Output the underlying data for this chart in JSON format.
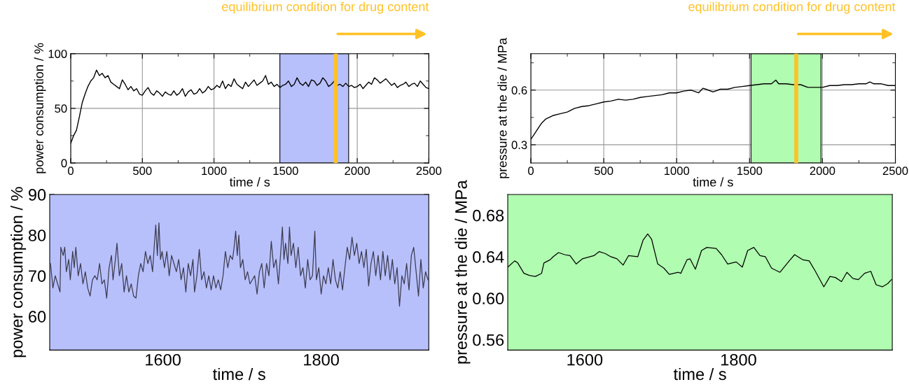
{
  "chart_data": [
    {
      "type": "line",
      "xlabel": "time / s",
      "ylabel": "power consumption / %",
      "xlim": [
        0,
        2500
      ],
      "ylim": [
        0,
        100
      ],
      "xticks": [
        0,
        {
          "value": 250,
          "label": null
        },
        500,
        {
          "value": 750,
          "label": null
        },
        1000,
        {
          "value": 1250,
          "label": null
        },
        1500,
        {
          "value": 1750,
          "label": null
        },
        2000,
        {
          "value": 2250,
          "label": null
        },
        2500
      ],
      "yticks": [
        0,
        {
          "value": 25,
          "label": null
        },
        50,
        {
          "value": 75,
          "label": null
        },
        100
      ],
      "grid": true,
      "bands": [
        {
          "axis": "x",
          "from": 1460,
          "to": 1940,
          "color": "#b8c0fc"
        }
      ],
      "ref_lines": [
        {
          "axis": "x",
          "value": 1850,
          "label": "equilibrium condition for drug content",
          "color": "#ffc125"
        }
      ],
      "series": [
        {
          "color": "#000000",
          "x": [
            0,
            20,
            40,
            60,
            80,
            100,
            120,
            140,
            160,
            180,
            200,
            220,
            240,
            260,
            280,
            300,
            320,
            340,
            360,
            380,
            400,
            420,
            440,
            460,
            480,
            500,
            520,
            540,
            560,
            580,
            600,
            620,
            640,
            660,
            680,
            700,
            720,
            740,
            760,
            780,
            800,
            820,
            840,
            860,
            880,
            900,
            920,
            940,
            960,
            980,
            1000,
            1020,
            1040,
            1060,
            1080,
            1100,
            1120,
            1140,
            1160,
            1180,
            1200,
            1220,
            1240,
            1260,
            1280,
            1300,
            1320,
            1340,
            1360,
            1380,
            1400,
            1420,
            1440,
            1460,
            1480,
            1500,
            1520,
            1540,
            1560,
            1580,
            1600,
            1620,
            1640,
            1660,
            1680,
            1700,
            1720,
            1740,
            1760,
            1780,
            1800,
            1820,
            1840,
            1860,
            1880,
            1900,
            1920,
            1940,
            1960,
            1980,
            2000,
            2020,
            2040,
            2060,
            2080,
            2100,
            2120,
            2140,
            2160,
            2180,
            2200,
            2220,
            2240,
            2260,
            2280,
            2300,
            2320,
            2340,
            2360,
            2380,
            2400,
            2420,
            2440,
            2460,
            2480,
            2500
          ],
          "values": [
            18,
            25,
            30,
            42,
            55,
            63,
            70,
            75,
            78,
            85,
            80,
            82,
            78,
            80,
            74,
            72,
            70,
            68,
            76,
            72,
            67,
            70,
            66,
            68,
            63,
            62,
            66,
            69,
            64,
            62,
            66,
            64,
            61,
            65,
            63,
            62,
            66,
            62,
            64,
            68,
            61,
            65,
            67,
            63,
            64,
            68,
            64,
            66,
            70,
            67,
            68,
            71,
            69,
            75,
            68,
            72,
            70,
            77,
            72,
            70,
            68,
            74,
            70,
            73,
            76,
            71,
            73,
            75,
            80,
            72,
            74,
            70,
            72,
            69,
            71,
            72,
            75,
            70,
            72,
            78,
            73,
            71,
            74,
            70,
            76,
            75,
            71,
            73,
            78,
            75,
            70,
            72,
            75,
            71,
            72,
            70,
            73,
            70,
            71,
            69,
            70,
            72,
            68,
            71,
            74,
            72,
            78,
            76,
            73,
            75,
            77,
            74,
            71,
            73,
            69,
            71,
            72,
            74,
            70,
            72,
            73,
            70,
            75,
            72,
            69,
            68
          ]
        }
      ]
    },
    {
      "type": "line",
      "xlabel": "time / s",
      "ylabel": "pressure at the die / MPa",
      "xlim": [
        0,
        2500
      ],
      "ylim": [
        0.2,
        0.8
      ],
      "xticks": [
        0,
        {
          "value": 250,
          "label": null
        },
        500,
        {
          "value": 750,
          "label": null
        },
        1000,
        {
          "value": 1250,
          "label": null
        },
        1500,
        {
          "value": 1750,
          "label": null
        },
        2000,
        {
          "value": 2250,
          "label": null
        },
        2500
      ],
      "yticks": [
        0.3,
        {
          "value": 0.45,
          "label": null
        },
        0.6,
        {
          "value": 0.75,
          "label": null
        }
      ],
      "grid": true,
      "bands": [
        {
          "axis": "x",
          "from": 1510,
          "to": 1990,
          "color": "#b0fcb0"
        }
      ],
      "ref_lines": [
        {
          "axis": "x",
          "value": 1820,
          "label": "equilibrium condition for drug content",
          "color": "#ffc125"
        }
      ],
      "series": [
        {
          "color": "#000000",
          "x": [
            0,
            25,
            50,
            75,
            100,
            150,
            200,
            250,
            300,
            350,
            400,
            450,
            500,
            550,
            600,
            650,
            700,
            750,
            800,
            850,
            900,
            950,
            1000,
            1050,
            1100,
            1150,
            1180,
            1200,
            1250,
            1300,
            1350,
            1400,
            1450,
            1500,
            1550,
            1600,
            1650,
            1680,
            1700,
            1750,
            1800,
            1850,
            1900,
            1950,
            2000,
            2050,
            2100,
            2150,
            2200,
            2250,
            2300,
            2325,
            2350,
            2400,
            2450,
            2500
          ],
          "values": [
            0.33,
            0.36,
            0.39,
            0.42,
            0.44,
            0.46,
            0.47,
            0.48,
            0.5,
            0.51,
            0.515,
            0.525,
            0.535,
            0.54,
            0.55,
            0.545,
            0.55,
            0.56,
            0.565,
            0.57,
            0.575,
            0.585,
            0.585,
            0.595,
            0.6,
            0.585,
            0.61,
            0.605,
            0.59,
            0.605,
            0.605,
            0.615,
            0.62,
            0.625,
            0.63,
            0.635,
            0.635,
            0.655,
            0.635,
            0.635,
            0.63,
            0.63,
            0.615,
            0.615,
            0.615,
            0.625,
            0.625,
            0.63,
            0.63,
            0.635,
            0.635,
            0.645,
            0.635,
            0.635,
            0.625,
            0.625
          ]
        }
      ]
    },
    {
      "type": "line",
      "xlabel": "time / s",
      "ylabel": "power consumption / %",
      "xlim": [
        1457,
        1936
      ],
      "ylim": [
        51.7,
        90
      ],
      "xticks": [
        {
          "value": 1500,
          "label": null
        },
        1600,
        {
          "value": 1700,
          "label": null
        },
        1800,
        {
          "value": 1900,
          "label": null
        }
      ],
      "yticks": [
        {
          "value": 55,
          "label": null
        },
        60,
        {
          "value": 65,
          "label": null
        },
        70,
        {
          "value": 75,
          "label": null
        },
        80,
        {
          "value": 85,
          "label": null
        },
        90
      ],
      "bands": [
        {
          "axis": "x",
          "from": 1457,
          "to": 1936,
          "color": "#b8c0fc"
        }
      ],
      "series": [
        {
          "color": "#3c3c50",
          "x": [
            1458,
            1461,
            1464,
            1467,
            1470,
            1471,
            1474,
            1476,
            1478,
            1481,
            1483,
            1486,
            1488,
            1490,
            1493,
            1496,
            1499,
            1502,
            1505,
            1508,
            1511,
            1514,
            1517,
            1520,
            1523,
            1526,
            1529,
            1532,
            1535,
            1537,
            1540,
            1542,
            1545,
            1548,
            1551,
            1554,
            1557,
            1560,
            1563,
            1566,
            1569,
            1572,
            1575,
            1578,
            1581,
            1584,
            1587,
            1589,
            1591,
            1593,
            1595,
            1597,
            1599,
            1602,
            1605,
            1608,
            1611,
            1614,
            1617,
            1620,
            1623,
            1626,
            1629,
            1632,
            1635,
            1638,
            1640,
            1643,
            1646,
            1649,
            1652,
            1655,
            1658,
            1661,
            1664,
            1667,
            1670,
            1673,
            1676,
            1679,
            1682,
            1685,
            1688,
            1690,
            1692,
            1694,
            1696,
            1698,
            1701,
            1704,
            1707,
            1710,
            1713,
            1716,
            1719,
            1722,
            1725,
            1728,
            1731,
            1734,
            1737,
            1740,
            1743,
            1746,
            1749,
            1751,
            1753,
            1755,
            1758,
            1760,
            1762,
            1765,
            1768,
            1771,
            1774,
            1777,
            1780,
            1783,
            1786,
            1789,
            1792,
            1794,
            1797,
            1800,
            1803,
            1806,
            1809,
            1812,
            1815,
            1818,
            1821,
            1824,
            1827,
            1830,
            1833,
            1836,
            1839,
            1842,
            1845,
            1848,
            1851,
            1854,
            1857,
            1860,
            1863,
            1866,
            1869,
            1872,
            1875,
            1878,
            1881,
            1884,
            1887,
            1890,
            1893,
            1896,
            1899,
            1902,
            1905,
            1908,
            1911,
            1914,
            1917,
            1920,
            1923,
            1926,
            1929,
            1932,
            1935
          ],
          "values": [
            73,
            67,
            70,
            68,
            66,
            77,
            75,
            77,
            71,
            74,
            69,
            76,
            72,
            77,
            70,
            73,
            68,
            71,
            67,
            65,
            69,
            70,
            69,
            73,
            68,
            69,
            64.5,
            72,
            75,
            69,
            74,
            78,
            70,
            73,
            66,
            70,
            66,
            68,
            65,
            64.5,
            70,
            73,
            71,
            76,
            73,
            75,
            71,
            77,
            82.5,
            75,
            83,
            74,
            76,
            72,
            76,
            70,
            75,
            73,
            71,
            74,
            69,
            72,
            66,
            73,
            70,
            74,
            66,
            70,
            76.5,
            69,
            71,
            67,
            70,
            66.5,
            70,
            67,
            69,
            66.5,
            70,
            76,
            72,
            75,
            74,
            77,
            81,
            75,
            80,
            72,
            74,
            69,
            71,
            68,
            69,
            70,
            65.5,
            71,
            73,
            67,
            73,
            70,
            78.5,
            72,
            74,
            68,
            76,
            82,
            74,
            78,
            73,
            82,
            75,
            78,
            72,
            77,
            70,
            72,
            67,
            74,
            69,
            70,
            81,
            69,
            72,
            65.5,
            70,
            68,
            72,
            68,
            74,
            69,
            67,
            71,
            66.5,
            72,
            77,
            74,
            79.5,
            75,
            78,
            73,
            76,
            72,
            76.5,
            67.5,
            73,
            76,
            70,
            75,
            69,
            76,
            70,
            75,
            69,
            74,
            68,
            72,
            62.5,
            70,
            68,
            73,
            66.5,
            75,
            77,
            71,
            65,
            74,
            67,
            71,
            69
          ]
        }
      ]
    },
    {
      "type": "line",
      "xlabel": "time / s",
      "ylabel": "pressure at the die / MPa",
      "xlim": [
        1500,
        2000
      ],
      "ylim": [
        0.55,
        0.7
      ],
      "xticks": [
        1600,
        {
          "value": 1700,
          "label": null
        },
        1800,
        {
          "value": 1900,
          "label": null
        }
      ],
      "yticks": [
        0.56,
        {
          "value": 0.58,
          "label": null
        },
        "0.60",
        {
          "value": 0.62,
          "label": null
        },
        0.64,
        {
          "value": 0.66,
          "label": null
        },
        0.68
      ],
      "bands": [
        {
          "axis": "x",
          "from": 1500,
          "to": 2000,
          "color": "#b0fcb0"
        }
      ],
      "series": [
        {
          "color": "#000000",
          "x": [
            1500,
            1509,
            1513,
            1521,
            1528,
            1536,
            1544,
            1547,
            1555,
            1559,
            1566,
            1574,
            1581,
            1589,
            1597,
            1612,
            1619,
            1627,
            1634,
            1642,
            1650,
            1657,
            1669,
            1676,
            1682,
            1687,
            1695,
            1703,
            1710,
            1722,
            1725,
            1733,
            1737,
            1744,
            1752,
            1759,
            1771,
            1778,
            1786,
            1797,
            1805,
            1812,
            1820,
            1828,
            1835,
            1843,
            1854,
            1866,
            1873,
            1884,
            1892,
            1900,
            1911,
            1919,
            1926,
            1934,
            1941,
            1949,
            1956,
            1964,
            1972,
            1979,
            1987,
            1994,
            1999
          ],
          "values": [
            0.63,
            0.636,
            0.634,
            0.624,
            0.622,
            0.621,
            0.624,
            0.634,
            0.637,
            0.64,
            0.644,
            0.642,
            0.641,
            0.633,
            0.638,
            0.641,
            0.645,
            0.643,
            0.64,
            0.638,
            0.632,
            0.641,
            0.64,
            0.656,
            0.662,
            0.657,
            0.633,
            0.629,
            0.623,
            0.625,
            0.624,
            0.637,
            0.638,
            0.628,
            0.646,
            0.649,
            0.648,
            0.642,
            0.633,
            0.635,
            0.63,
            0.646,
            0.649,
            0.641,
            0.64,
            0.629,
            0.625,
            0.636,
            0.642,
            0.637,
            0.636,
            0.626,
            0.611,
            0.621,
            0.62,
            0.616,
            0.625,
            0.619,
            0.618,
            0.624,
            0.626,
            0.613,
            0.611,
            0.614,
            0.618
          ]
        }
      ]
    }
  ]
}
